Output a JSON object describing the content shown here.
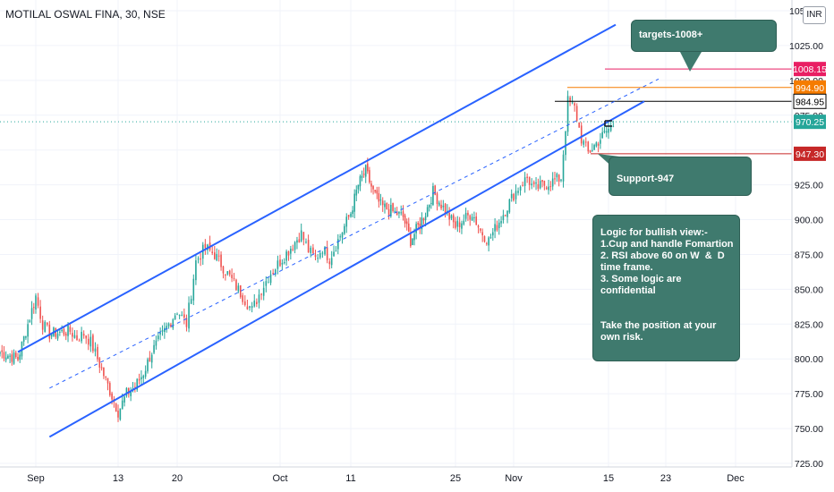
{
  "header": {
    "symbol_line": "MOTILAL OSWAL FINA, 30, NSE",
    "currency_badge": "INR",
    "currency_icon": "currency-icon"
  },
  "colors": {
    "up": "#26a69a",
    "down": "#ef5350",
    "channel": "#2962ff",
    "callout_bg": "#3f7a6e",
    "target_line": "#e91e63",
    "resistance_line": "#f57c00",
    "high_line": "#000000",
    "support_line": "#c62828",
    "last_price_label": "#26a69a"
  },
  "annotations": {
    "targets": "targets-1008+",
    "support": "Support-947",
    "logic_lines": [
      "Logic for bullish view:-",
      "1.Cup and handle Fomartion",
      "2. RSI above 60 on W  &  D",
      "time frame.",
      "3. Some logic are",
      "confidential",
      "",
      "",
      "Take the position at your",
      "own risk."
    ]
  },
  "chart_data": {
    "type": "candlestick",
    "symbol": "MOTILAL OSWAL FINA",
    "interval": "30",
    "exchange": "NSE",
    "currency": "INR",
    "x_tick_labels": [
      "Sep",
      "13",
      "20",
      "Oct",
      "11",
      "25",
      "Nov",
      "15",
      "23",
      "Dec"
    ],
    "y_tick_labels": [
      "725.00",
      "750.00",
      "775.00",
      "800.00",
      "825.00",
      "850.00",
      "875.00",
      "900.00",
      "925.00",
      "950.00",
      "975.00",
      "1000.00",
      "1025.00",
      "1050.00"
    ],
    "ylim": [
      725,
      1050
    ],
    "price_levels": [
      {
        "name": "target",
        "value": 1008.15,
        "label": "1008.15",
        "color": "#e91e63"
      },
      {
        "name": "resistance",
        "value": 994.9,
        "label": "994.90",
        "color": "#f57c00"
      },
      {
        "name": "recent-high",
        "value": 984.95,
        "label": "984.95",
        "color": "#000000"
      },
      {
        "name": "last-price",
        "value": 970.25,
        "label": "970.25",
        "color": "#26a69a"
      },
      {
        "name": "support",
        "value": 947.3,
        "label": "947.30",
        "color": "#c62828"
      }
    ],
    "channel": {
      "upper": [
        {
          "date": "Aug 31",
          "price": 805
        },
        {
          "date": "Nov 16",
          "price": 1040
        }
      ],
      "lower": [
        {
          "date": "Sep 3",
          "price": 744
        },
        {
          "date": "Nov 20",
          "price": 985
        }
      ],
      "middle": [
        {
          "date": "Sep 3",
          "price": 779
        },
        {
          "date": "Nov 22",
          "price": 1001
        }
      ]
    },
    "price_path": [
      {
        "date": "Aug 30",
        "close": 805
      },
      {
        "date": "Aug 31",
        "close": 800
      },
      {
        "date": "Sep 1",
        "close": 845
      },
      {
        "date": "Sep 2",
        "close": 825
      },
      {
        "date": "Sep 3",
        "close": 818
      },
      {
        "date": "Sep 6",
        "close": 820
      },
      {
        "date": "Sep 7",
        "close": 815
      },
      {
        "date": "Sep 8",
        "close": 818
      },
      {
        "date": "Sep 9",
        "close": 812
      },
      {
        "date": "Sep 10",
        "close": 800
      },
      {
        "date": "Sep 13",
        "close": 762
      },
      {
        "date": "Sep 14",
        "close": 775
      },
      {
        "date": "Sep 15",
        "close": 780
      },
      {
        "date": "Sep 16",
        "close": 790
      },
      {
        "date": "Sep 17",
        "close": 805
      },
      {
        "date": "Sep 20",
        "close": 835
      },
      {
        "date": "Sep 21",
        "close": 825
      },
      {
        "date": "Sep 22",
        "close": 870
      },
      {
        "date": "Sep 23",
        "close": 880
      },
      {
        "date": "Sep 24",
        "close": 875
      },
      {
        "date": "Sep 27",
        "close": 845
      },
      {
        "date": "Sep 28",
        "close": 835
      },
      {
        "date": "Sep 29",
        "close": 850
      },
      {
        "date": "Sep 30",
        "close": 862
      },
      {
        "date": "Oct 1",
        "close": 870
      },
      {
        "date": "Oct 4",
        "close": 890
      },
      {
        "date": "Oct 5",
        "close": 878
      },
      {
        "date": "Oct 6",
        "close": 872
      },
      {
        "date": "Oct 7",
        "close": 880
      },
      {
        "date": "Oct 8",
        "close": 872
      },
      {
        "date": "Oct 11",
        "close": 905
      },
      {
        "date": "Oct 12",
        "close": 925
      },
      {
        "date": "Oct 13",
        "close": 935
      },
      {
        "date": "Oct 14",
        "close": 920
      },
      {
        "date": "Oct 15",
        "close": 910
      },
      {
        "date": "Oct 18",
        "close": 902
      },
      {
        "date": "Oct 19",
        "close": 885
      },
      {
        "date": "Oct 20",
        "close": 895
      },
      {
        "date": "Oct 21",
        "close": 905
      },
      {
        "date": "Oct 22",
        "close": 920
      },
      {
        "date": "Oct 25",
        "close": 895
      },
      {
        "date": "Oct 26",
        "close": 900
      },
      {
        "date": "Oct 27",
        "close": 905
      },
      {
        "date": "Oct 28",
        "close": 892
      },
      {
        "date": "Oct 29",
        "close": 885
      },
      {
        "date": "Nov 1",
        "close": 918
      },
      {
        "date": "Nov 2",
        "close": 925
      },
      {
        "date": "Nov 3",
        "close": 930
      },
      {
        "date": "Nov 4",
        "close": 922
      },
      {
        "date": "Nov 8",
        "close": 930
      },
      {
        "date": "Nov 9",
        "close": 985
      },
      {
        "date": "Nov 10",
        "close": 980
      },
      {
        "date": "Nov 11",
        "close": 958
      },
      {
        "date": "Nov 12",
        "close": 948
      },
      {
        "date": "Nov 15",
        "close": 965
      },
      {
        "date": "Nov 16",
        "close": 970
      }
    ]
  }
}
